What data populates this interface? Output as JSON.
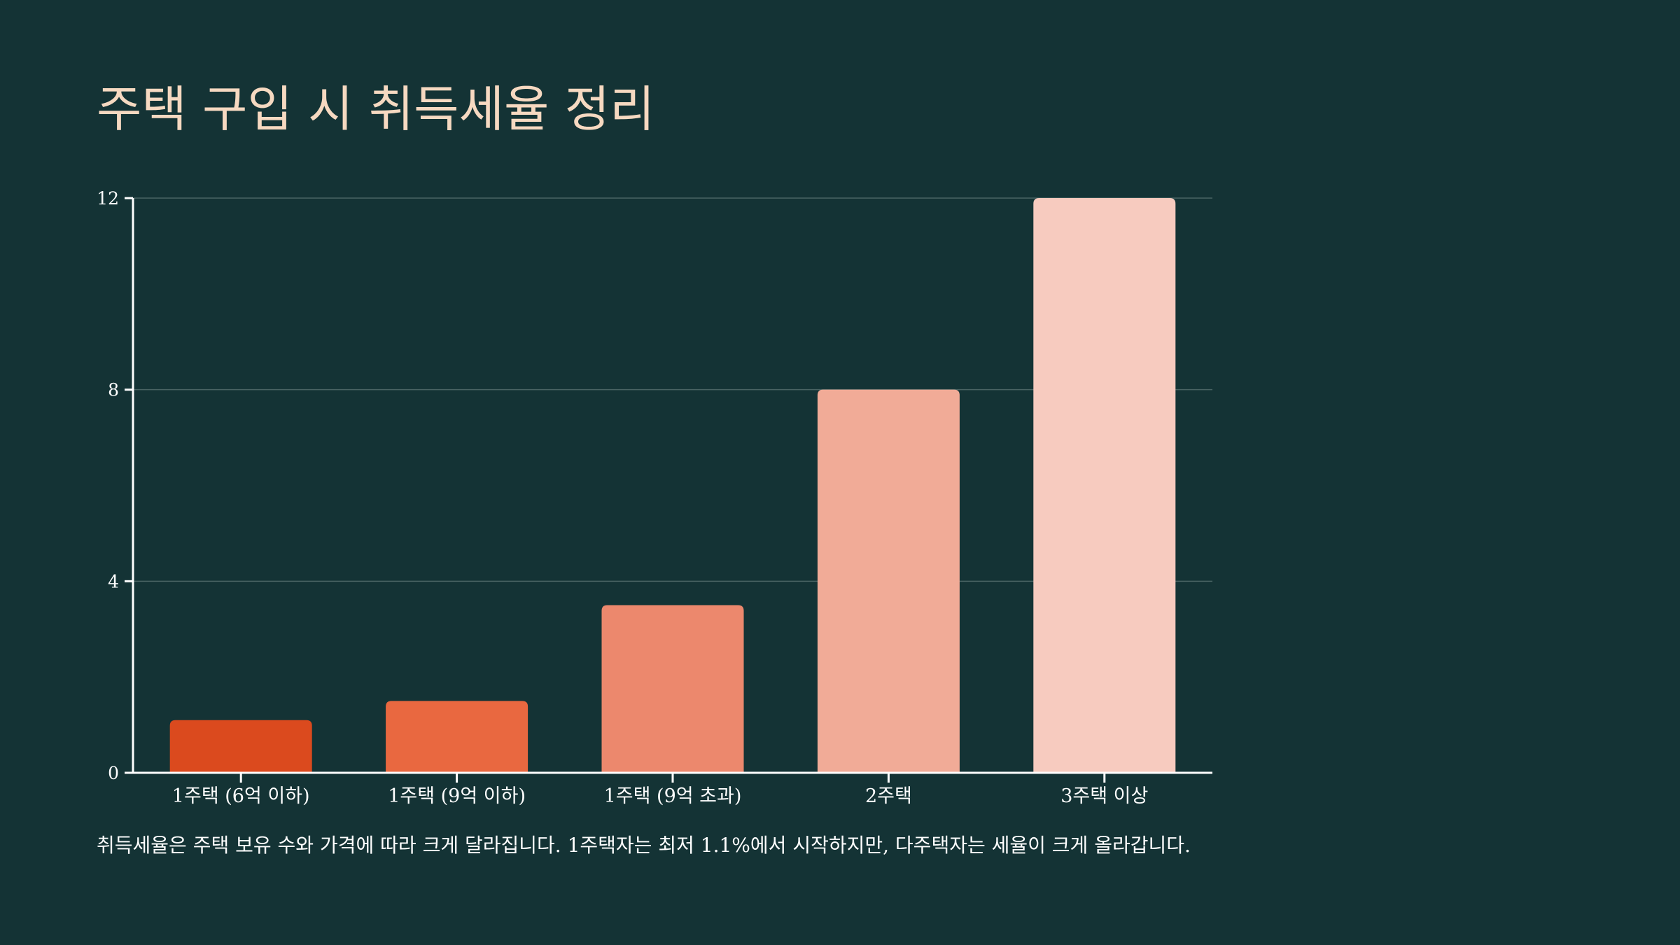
{
  "slide": {
    "title": "주택 구입 시 취득세율 정리",
    "caption": "취득세율은 주택 보유 수와 가격에 따라 크게 달라집니다. 1주택자는 최저 1.1%에서 시작하지만, 다주택자는 세율이 크게 올라갑니다."
  },
  "colors": {
    "background": "#143335",
    "title": "#f6d9c1",
    "axis": "#ffffff",
    "grid": "#4a6464"
  },
  "chart_data": {
    "type": "bar",
    "title": "",
    "xlabel": "",
    "ylabel": "",
    "categories": [
      "1주택 (6억 이하)",
      "1주택 (9억 이하)",
      "1주택 (9억 초과)",
      "2주택",
      "3주택 이상"
    ],
    "values": [
      1.1,
      1.5,
      3.5,
      8,
      12
    ],
    "bar_colors": [
      "#db4a1e",
      "#e96840",
      "#ec886d",
      "#f1ab97",
      "#f7cbbf"
    ],
    "ylim": [
      0,
      12
    ],
    "yticks": [
      0,
      4,
      8,
      12
    ],
    "ytick_labels": [
      "0",
      "4",
      "8",
      "12"
    ],
    "grid": true,
    "legend": "none"
  }
}
